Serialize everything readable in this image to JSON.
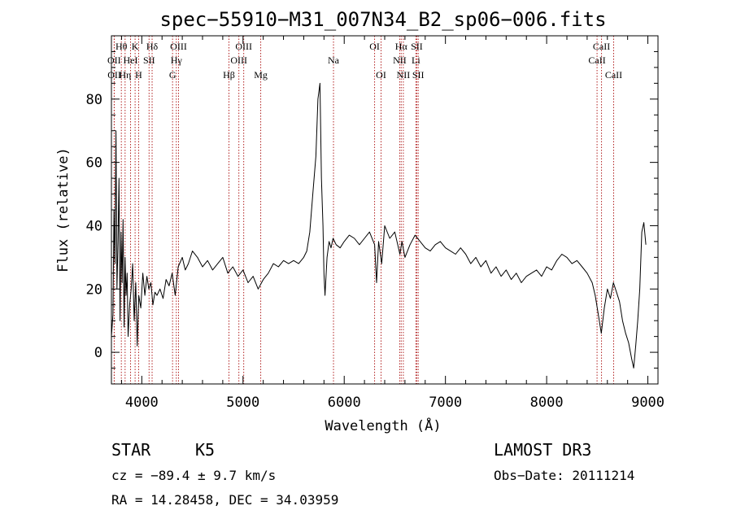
{
  "chart_data": {
    "type": "line",
    "title": "spec−55910−M31_007N34_B2_sp06−006.fits",
    "xlabel": "Wavelength (Å)",
    "ylabel": "Flux (relative)",
    "xlim": [
      3700,
      9100
    ],
    "ylim": [
      -10,
      100
    ],
    "x_ticks": [
      4000,
      5000,
      6000,
      7000,
      8000,
      9000
    ],
    "y_ticks": [
      0,
      20,
      40,
      60,
      80
    ],
    "x_tick_labels": [
      "4000",
      "5000",
      "6000",
      "7000",
      "8000",
      "9000"
    ],
    "y_tick_labels": [
      "0",
      "20",
      "40",
      "60",
      "80"
    ],
    "series": [
      {
        "name": "spectrum",
        "x": [
          3700,
          3715,
          3725,
          3735,
          3745,
          3755,
          3765,
          3775,
          3785,
          3795,
          3805,
          3815,
          3825,
          3835,
          3845,
          3855,
          3865,
          3880,
          3895,
          3910,
          3925,
          3940,
          3955,
          3970,
          3990,
          4010,
          4030,
          4050,
          4070,
          4090,
          4110,
          4130,
          4150,
          4180,
          4210,
          4240,
          4270,
          4300,
          4330,
          4360,
          4400,
          4430,
          4460,
          4500,
          4550,
          4600,
          4650,
          4700,
          4750,
          4800,
          4850,
          4900,
          4950,
          5000,
          5050,
          5100,
          5150,
          5200,
          5250,
          5300,
          5350,
          5400,
          5450,
          5500,
          5550,
          5600,
          5630,
          5660,
          5690,
          5720,
          5740,
          5760,
          5775,
          5790,
          5800,
          5810,
          5830,
          5850,
          5870,
          5890,
          5920,
          5960,
          6000,
          6050,
          6100,
          6150,
          6200,
          6250,
          6300,
          6320,
          6340,
          6370,
          6400,
          6450,
          6500,
          6550,
          6570,
          6600,
          6650,
          6700,
          6750,
          6800,
          6850,
          6900,
          6950,
          7000,
          7050,
          7100,
          7150,
          7200,
          7250,
          7300,
          7350,
          7400,
          7450,
          7500,
          7550,
          7600,
          7650,
          7700,
          7750,
          7800,
          7850,
          7900,
          7950,
          8000,
          8050,
          8100,
          8150,
          8200,
          8250,
          8300,
          8350,
          8400,
          8450,
          8480,
          8510,
          8540,
          8570,
          8600,
          8630,
          8660,
          8690,
          8720,
          8750,
          8780,
          8810,
          8840,
          8860,
          8880,
          8900,
          8920,
          8940,
          8960,
          8980
        ],
        "values": [
          5,
          12,
          45,
          28,
          70,
          20,
          35,
          55,
          10,
          38,
          22,
          42,
          8,
          30,
          18,
          25,
          5,
          15,
          20,
          28,
          10,
          22,
          2,
          18,
          14,
          25,
          18,
          24,
          20,
          22,
          15,
          19,
          18,
          20,
          17,
          23,
          21,
          25,
          18,
          27,
          30,
          26,
          28,
          32,
          30,
          27,
          29,
          26,
          28,
          30,
          25,
          27,
          24,
          26,
          22,
          24,
          20,
          23,
          25,
          28,
          27,
          29,
          28,
          29,
          28,
          30,
          32,
          38,
          50,
          62,
          80,
          85,
          55,
          40,
          25,
          18,
          30,
          35,
          33,
          36,
          34,
          33,
          35,
          37,
          36,
          34,
          36,
          38,
          34,
          22,
          35,
          28,
          40,
          36,
          38,
          31,
          35,
          30,
          34,
          37,
          35,
          33,
          32,
          34,
          35,
          33,
          32,
          31,
          33,
          31,
          28,
          30,
          27,
          29,
          25,
          27,
          24,
          26,
          23,
          25,
          22,
          24,
          25,
          26,
          24,
          27,
          26,
          29,
          31,
          30,
          28,
          29,
          27,
          25,
          22,
          18,
          12,
          6,
          14,
          20,
          17,
          22,
          19,
          16,
          10,
          6,
          3,
          -2,
          -5,
          2,
          10,
          20,
          38,
          41,
          34
        ]
      }
    ],
    "spectral_lines": [
      {
        "label": "Hθ",
        "x": 3798,
        "row": 1
      },
      {
        "label": "OII",
        "x": 3727,
        "row": 2
      },
      {
        "label": "HeI",
        "x": 3889,
        "row": 2
      },
      {
        "label": "OII",
        "x": 3729,
        "row": 3
      },
      {
        "label": "Hη",
        "x": 3835,
        "row": 3
      },
      {
        "label": "K",
        "x": 3934,
        "row": 1
      },
      {
        "label": "SII",
        "x": 4072,
        "row": 2
      },
      {
        "label": "H",
        "x": 3969,
        "row": 3
      },
      {
        "label": "Hδ",
        "x": 4102,
        "row": 1
      },
      {
        "label": "OIII",
        "x": 4363,
        "row": 1
      },
      {
        "label": "Hγ",
        "x": 4341,
        "row": 2
      },
      {
        "label": "G",
        "x": 4304,
        "row": 3
      },
      {
        "label": "OIII",
        "x": 5007,
        "row": 1
      },
      {
        "label": "OIII",
        "x": 4959,
        "row": 2
      },
      {
        "label": "Hβ",
        "x": 4861,
        "row": 3
      },
      {
        "label": "Mg",
        "x": 5175,
        "row": 3
      },
      {
        "label": "Na",
        "x": 5894,
        "row": 2
      },
      {
        "label": "OI",
        "x": 6300,
        "row": 1
      },
      {
        "label": "OI",
        "x": 6364,
        "row": 3
      },
      {
        "label": "Hα",
        "x": 6563,
        "row": 1
      },
      {
        "label": "NII",
        "x": 6548,
        "row": 2
      },
      {
        "label": "NII",
        "x": 6584,
        "row": 3
      },
      {
        "label": "SII",
        "x": 6717,
        "row": 1
      },
      {
        "label": "Li",
        "x": 6708,
        "row": 2
      },
      {
        "label": "SII",
        "x": 6731,
        "row": 3
      },
      {
        "label": "CaII",
        "x": 8542,
        "row": 1
      },
      {
        "label": "CaII",
        "x": 8498,
        "row": 2
      },
      {
        "label": "CaII",
        "x": 8662,
        "row": 3
      }
    ],
    "line_color": "#b22222",
    "spectrum_color": "#000000",
    "axis_color": "#000000"
  },
  "info": {
    "object_type": "STAR",
    "subclass": "K5",
    "survey": "LAMOST DR3",
    "redshift": "cz = −89.4 ± 9.7 km/s",
    "obs_date": "Obs−Date: 20111214",
    "coords": "RA =  14.28458, DEC =  34.03959"
  }
}
